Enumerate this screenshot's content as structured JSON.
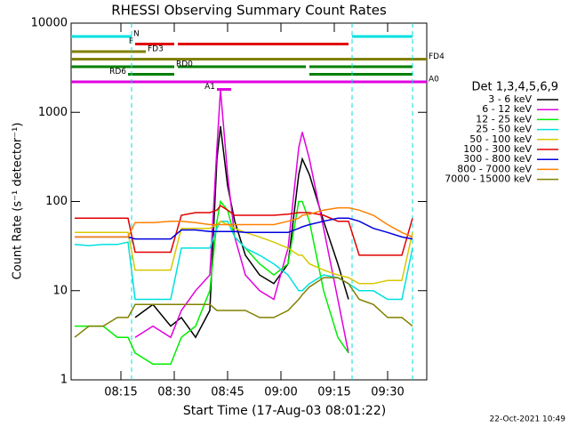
{
  "chart_data": {
    "type": "line",
    "title": "RHESSI Observing Summary Count Rates",
    "x_label": "Start Time (17-Aug-03 08:01:22)",
    "y_label": "Count Rate (s⁻¹ detector⁻¹)",
    "footer": "22-Oct-2021 10:49",
    "legend_title": "Det 1,3,4,5,6,9",
    "log_y": true,
    "xlim": [
      "08:01",
      "09:41"
    ],
    "xticks": [
      "08:15",
      "08:30",
      "08:45",
      "09:00",
      "09:15",
      "09:30"
    ],
    "ylim": [
      1,
      10000
    ],
    "yticks": [
      1,
      10,
      100,
      1000,
      10000
    ],
    "x": [
      "08:02",
      "08:06",
      "08:10",
      "08:14",
      "08:17",
      "08:19",
      "08:24",
      "08:29",
      "08:32",
      "08:36",
      "08:40",
      "08:42",
      "08:43",
      "08:45",
      "08:47",
      "08:50",
      "08:54",
      "08:58",
      "09:02",
      "09:05",
      "09:06",
      "09:08",
      "09:12",
      "09:16",
      "09:19",
      "09:22",
      "09:26",
      "09:30",
      "09:34",
      "09:37"
    ],
    "series": [
      {
        "name": "3 - 6 keV",
        "color": "#000000",
        "values": [
          null,
          null,
          null,
          null,
          null,
          5,
          7,
          4,
          5,
          3,
          6,
          300,
          700,
          150,
          60,
          25,
          15,
          12,
          20,
          200,
          300,
          200,
          60,
          20,
          8,
          null,
          null,
          null,
          null,
          null
        ]
      },
      {
        "name": "6 - 12 keV",
        "color": "#e000e0",
        "values": [
          null,
          null,
          null,
          null,
          null,
          3,
          4,
          3,
          6,
          10,
          15,
          400,
          1800,
          200,
          40,
          15,
          10,
          8,
          30,
          400,
          600,
          300,
          50,
          8,
          2,
          null,
          null,
          null,
          null,
          null
        ]
      },
      {
        "name": "12 - 25 keV",
        "color": "#00ee00",
        "values": [
          4,
          4,
          4,
          3,
          3,
          2,
          1.5,
          1.5,
          3,
          4,
          10,
          60,
          100,
          80,
          40,
          30,
          20,
          15,
          20,
          100,
          100,
          60,
          10,
          3,
          2,
          null,
          null,
          null,
          null,
          4
        ]
      },
      {
        "name": "25 - 50 keV",
        "color": "#00e0e0",
        "values": [
          33,
          32,
          33,
          33,
          35,
          8,
          8,
          8,
          30,
          30,
          30,
          50,
          60,
          60,
          40,
          30,
          25,
          20,
          15,
          10,
          10,
          12,
          15,
          14,
          12,
          10,
          10,
          8,
          8,
          30
        ]
      },
      {
        "name": "50 - 100 keV",
        "color": "#d8c800",
        "values": [
          45,
          45,
          45,
          45,
          45,
          17,
          17,
          17,
          50,
          50,
          50,
          55,
          60,
          55,
          50,
          45,
          40,
          35,
          30,
          25,
          25,
          20,
          17,
          15,
          14,
          12,
          12,
          13,
          13,
          45
        ]
      },
      {
        "name": "100 - 300 keV",
        "color": "#e00000",
        "values": [
          65,
          65,
          65,
          65,
          65,
          27,
          27,
          27,
          70,
          75,
          75,
          80,
          90,
          80,
          70,
          70,
          70,
          70,
          72,
          75,
          75,
          75,
          70,
          60,
          60,
          25,
          25,
          25,
          25,
          65
        ]
      },
      {
        "name": "300 - 800 keV",
        "color": "#0000e0",
        "values": [
          40,
          40,
          40,
          40,
          40,
          38,
          38,
          38,
          48,
          48,
          46,
          46,
          46,
          46,
          46,
          45,
          45,
          45,
          45,
          50,
          52,
          55,
          60,
          65,
          65,
          60,
          50,
          45,
          40,
          38
        ]
      },
      {
        "name": "800 - 7000 keV",
        "color": "#ff8000",
        "values": [
          40,
          40,
          40,
          40,
          40,
          58,
          58,
          60,
          60,
          58,
          55,
          55,
          55,
          55,
          55,
          55,
          55,
          55,
          60,
          65,
          70,
          72,
          80,
          85,
          85,
          80,
          70,
          55,
          45,
          40
        ]
      },
      {
        "name": "7000 - 15000 keV",
        "color": "#808000",
        "values": [
          3,
          4,
          4,
          5,
          5,
          7,
          7,
          7,
          7,
          7,
          7,
          6,
          6,
          6,
          6,
          6,
          5,
          5,
          6,
          8,
          9,
          11,
          14,
          14,
          12,
          8,
          7,
          5,
          5,
          4
        ]
      }
    ],
    "flags": [
      {
        "label": "N",
        "color": "#00e0e0",
        "segments": [
          [
            "08:01",
            "08:18"
          ],
          [
            "09:20",
            "09:37"
          ]
        ]
      },
      {
        "label": "F",
        "color": "#e00000",
        "segments": [
          [
            "08:19",
            "08:30"
          ],
          [
            "08:31",
            "09:19"
          ]
        ]
      },
      {
        "label": "FD3",
        "color": "#808000",
        "segments": [
          [
            "08:01",
            "08:22"
          ]
        ]
      },
      {
        "label": "FD4",
        "color": "#808000",
        "segments": [
          [
            "08:01",
            "09:41"
          ]
        ]
      },
      {
        "label": "RD0",
        "color": "#008000",
        "segments": [
          [
            "08:01",
            "08:30"
          ],
          [
            "08:31",
            "09:07"
          ],
          [
            "09:08",
            "09:37"
          ]
        ]
      },
      {
        "label": "RD6",
        "color": "#008000",
        "segments": [
          [
            "08:17",
            "08:30"
          ],
          [
            "09:08",
            "09:37"
          ]
        ]
      },
      {
        "label": "A0",
        "color": "#e000e0",
        "segments": [
          [
            "08:01",
            "09:41"
          ]
        ]
      },
      {
        "label": "A1",
        "color": "#e000e0",
        "segments": [
          [
            "08:42",
            "08:46"
          ]
        ]
      }
    ]
  }
}
